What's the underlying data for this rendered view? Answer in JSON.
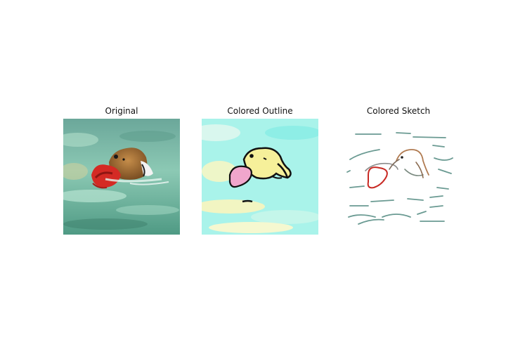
{
  "panels": [
    {
      "id": "original",
      "title": "Original"
    },
    {
      "id": "colored-outline",
      "title": "Colored Outline"
    },
    {
      "id": "colored-sketch",
      "title": "Colored Sketch"
    }
  ],
  "palette": {
    "water_light": "#8fd3c0",
    "water_dark": "#3f8f7a",
    "dog_fur": "#b07a3c",
    "toy_red": "#d42a24",
    "outline_bg": "#a6f2e8",
    "outline_dog": "#f4ef9c",
    "outline_toy": "#f0a8d0",
    "sketch_stroke": "#6a9a92"
  }
}
